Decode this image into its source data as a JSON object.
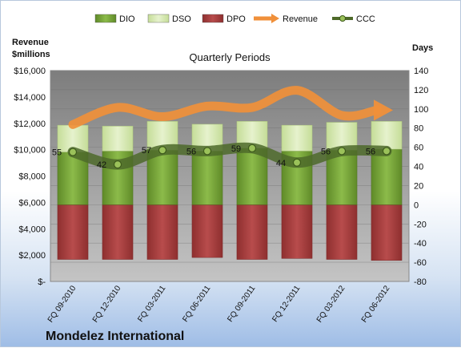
{
  "chart_data": {
    "type": "bar",
    "title": "Quarterly Periods",
    "company": "Mondelez International",
    "left_axis_label": "Revenue $millions",
    "left_axis_label_lines": [
      "Revenue",
      "$millions"
    ],
    "right_axis_label": "Days",
    "categories": [
      "FQ 09-2010",
      "FQ 12-2010",
      "FQ 03-2011",
      "FQ 06-2011",
      "FQ 09-2011",
      "FQ 12-2011",
      "FQ 03-2012",
      "FQ 06-2012"
    ],
    "left_ticks": [
      "$-",
      "$2,000",
      "$4,000",
      "$6,000",
      "$8,000",
      "$10,000",
      "$12,000",
      "$14,000",
      "$16,000"
    ],
    "left_tick_values": [
      0,
      2000,
      4000,
      6000,
      8000,
      10000,
      12000,
      14000,
      16000
    ],
    "left_ylim": [
      0,
      16000
    ],
    "right_ylim": [
      -80,
      140
    ],
    "right_ticks": [
      "-80",
      "-60",
      "-40",
      "-20",
      "0",
      "20",
      "40",
      "60",
      "80",
      "100",
      "120",
      "140"
    ],
    "right_tick_values": [
      -80,
      -60,
      -40,
      -20,
      0,
      20,
      40,
      60,
      80,
      100,
      120,
      140
    ],
    "legend": [
      "DIO",
      "DSO",
      "DPO",
      "Revenue",
      "CCC"
    ],
    "legend_position": "top",
    "grid": true,
    "series": [
      {
        "name": "DIO",
        "axis": "right",
        "values": [
          55,
          56,
          57,
          56,
          59,
          56,
          57,
          58
        ]
      },
      {
        "name": "DSO",
        "axis": "right",
        "values": [
          28,
          26,
          30,
          28,
          28,
          27,
          29,
          29
        ]
      },
      {
        "name": "DPO",
        "axis": "right",
        "values": [
          -57,
          -57,
          -57,
          -55,
          -57,
          -56,
          -57,
          -58
        ]
      },
      {
        "name": "Revenue",
        "axis": "left",
        "values": [
          11900,
          13200,
          12500,
          13300,
          13200,
          14500,
          12600,
          13000
        ]
      },
      {
        "name": "CCC",
        "axis": "right",
        "values": [
          55,
          42,
          57,
          56,
          59,
          44,
          56,
          56
        ]
      }
    ],
    "ccc_labels": [
      "55",
      "42",
      "57",
      "56",
      "59",
      "44",
      "56",
      "56"
    ],
    "colors": {
      "DIO": "#77a13a",
      "DSO": "#d6e8b2",
      "DPO": "#a83c3c",
      "Revenue": "#f0903a",
      "CCC": "#4e6a2a",
      "plot_bg": "#9a9a9a"
    }
  }
}
